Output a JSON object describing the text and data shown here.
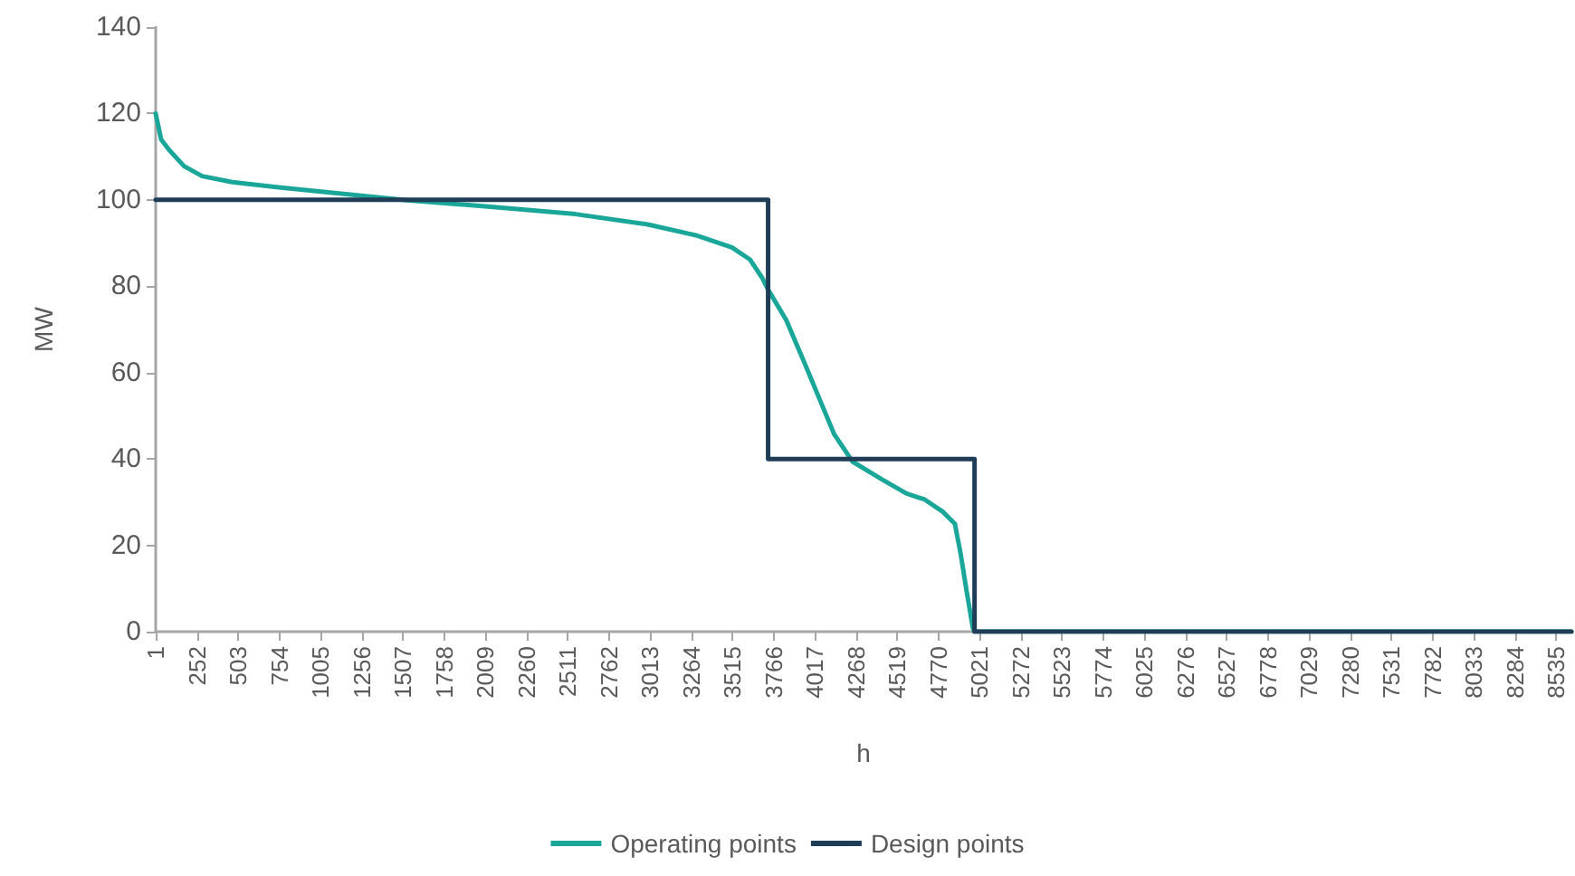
{
  "chart_data": {
    "type": "line",
    "xlabel": "h",
    "ylabel": "MW",
    "xlim": [
      1,
      8628
    ],
    "xticks": [
      1,
      252,
      503,
      754,
      1005,
      1256,
      1507,
      1758,
      2009,
      2260,
      2511,
      2762,
      3013,
      3264,
      3515,
      3766,
      4017,
      4268,
      4519,
      4770,
      5021,
      5272,
      5523,
      5774,
      6025,
      6276,
      6527,
      6778,
      7029,
      7280,
      7531,
      7782,
      8033,
      8284,
      8535
    ],
    "ylim": [
      0,
      140
    ],
    "yticks": [
      0,
      20,
      40,
      60,
      80,
      100,
      120,
      140
    ],
    "grid": false,
    "legend": "bottom",
    "marker": "none",
    "line_style": "solid",
    "series": [
      {
        "name": "Operating points",
        "color": "#1aa698",
        "type": "line",
        "x": [
          1,
          34,
          82,
          174,
          284,
          468,
          724,
          1091,
          1531,
          2009,
          2559,
          2999,
          3292,
          3512,
          3622,
          3696,
          3733,
          3843,
          3953,
          4045,
          4136,
          4247,
          4430,
          4577,
          4687,
          4797,
          4871,
          4907,
          4943,
          4980,
          4991,
          8628
        ],
        "values": [
          120,
          114,
          111.6,
          107.8,
          105.5,
          104.1,
          103,
          101.6,
          99.9,
          98.5,
          96.7,
          94.3,
          91.8,
          89,
          86.2,
          82,
          79.2,
          72.2,
          62.4,
          54,
          45.7,
          39.4,
          35.2,
          32,
          30.6,
          27.8,
          25,
          17.9,
          9.3,
          1,
          0,
          0
        ]
      },
      {
        "name": "Design points",
        "color": "#1f3d57",
        "type": "step",
        "x": [
          1,
          3733,
          4991,
          8628
        ],
        "values": [
          100,
          40,
          0,
          0
        ]
      }
    ]
  }
}
